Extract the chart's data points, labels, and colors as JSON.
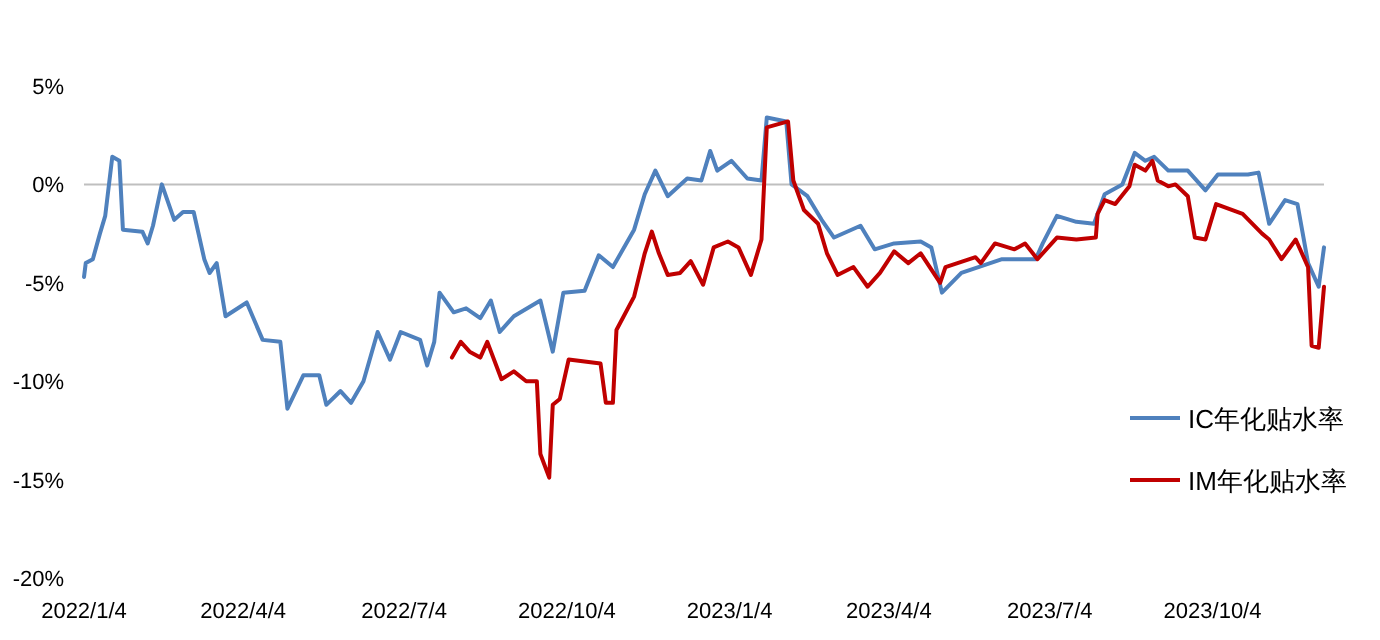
{
  "chart_data": {
    "type": "line",
    "series": [
      {
        "name": "IC年化贴水率",
        "color": "#4f81bd",
        "x": [
          "2022-01-04",
          "2022-01-05",
          "2022-01-09",
          "2022-01-13",
          "2022-01-16",
          "2022-01-20",
          "2022-01-24",
          "2022-01-26",
          "2022-02-06",
          "2022-02-09",
          "2022-02-12",
          "2022-02-17",
          "2022-02-24",
          "2022-03-01",
          "2022-03-07",
          "2022-03-13",
          "2022-03-16",
          "2022-03-20",
          "2022-03-25",
          "2022-04-06",
          "2022-04-15",
          "2022-04-25",
          "2022-04-29",
          "2022-05-08",
          "2022-05-17",
          "2022-05-21",
          "2022-05-29",
          "2022-06-04",
          "2022-06-11",
          "2022-06-19",
          "2022-06-26",
          "2022-07-02",
          "2022-07-13",
          "2022-07-17",
          "2022-07-21",
          "2022-07-24",
          "2022-08-01",
          "2022-08-08",
          "2022-08-16",
          "2022-08-22",
          "2022-08-27",
          "2022-09-04",
          "2022-09-19",
          "2022-09-26",
          "2022-10-02",
          "2022-10-14",
          "2022-10-22",
          "2022-10-30",
          "2022-11-11",
          "2022-11-17",
          "2022-11-23",
          "2022-11-30",
          "2022-12-11",
          "2022-12-19",
          "2022-12-24",
          "2022-12-28",
          "2023-01-05",
          "2023-01-14",
          "2023-01-22",
          "2023-01-25",
          "2023-02-05",
          "2023-02-08",
          "2023-02-17",
          "2023-02-25",
          "2023-03-04",
          "2023-03-19",
          "2023-03-27",
          "2023-04-07",
          "2023-04-22",
          "2023-04-28",
          "2023-05-04",
          "2023-05-15",
          "2023-06-07",
          "2023-06-26",
          "2023-06-30",
          "2023-07-08",
          "2023-07-19",
          "2023-07-29",
          "2023-08-04",
          "2023-08-14",
          "2023-08-21",
          "2023-08-27",
          "2023-09-01",
          "2023-09-09",
          "2023-09-20",
          "2023-09-30",
          "2023-10-07",
          "2023-10-24",
          "2023-10-30",
          "2023-11-05",
          "2023-11-14",
          "2023-11-21",
          "2023-11-27",
          "2023-12-03",
          "2023-12-06"
        ],
        "values": [
          -4.7,
          -4.0,
          -3.8,
          -2.5,
          -1.6,
          1.4,
          1.2,
          -2.3,
          -2.4,
          -3.0,
          -2.1,
          0.0,
          -1.8,
          -1.4,
          -1.4,
          -3.8,
          -4.5,
          -4.0,
          -6.7,
          -6.0,
          -7.9,
          -8.0,
          -11.4,
          -9.7,
          -9.7,
          -11.2,
          -10.5,
          -11.1,
          -10.0,
          -7.5,
          -8.9,
          -7.5,
          -7.9,
          -9.2,
          -8.0,
          -5.5,
          -6.5,
          -6.3,
          -6.8,
          -5.9,
          -7.5,
          -6.7,
          -5.9,
          -8.5,
          -5.5,
          -5.4,
          -3.6,
          -4.2,
          -2.3,
          -0.5,
          0.7,
          -0.6,
          0.3,
          0.2,
          1.7,
          0.7,
          1.2,
          0.3,
          0.2,
          3.4,
          3.2,
          0.0,
          -0.6,
          -1.8,
          -2.7,
          -2.1,
          -3.3,
          -3.0,
          -2.9,
          -3.2,
          -5.5,
          -4.5,
          -3.8,
          -3.8,
          -3.0,
          -1.6,
          -1.9,
          -2.0,
          -0.5,
          0.0,
          1.6,
          1.2,
          1.4,
          0.7,
          0.7,
          -0.3,
          0.5,
          0.5,
          0.6,
          -2.0,
          -0.8,
          -1.0,
          -4.0,
          -5.2,
          -3.2
        ]
      },
      {
        "name": "IM年化贴水率",
        "color": "#c00000",
        "x": [
          "2022-07-31",
          "2022-08-05",
          "2022-08-10",
          "2022-08-16",
          "2022-08-20",
          "2022-08-28",
          "2022-09-04",
          "2022-09-11",
          "2022-09-17",
          "2022-09-19",
          "2022-09-24",
          "2022-09-26",
          "2022-09-30",
          "2022-10-05",
          "2022-10-23",
          "2022-10-26",
          "2022-10-30",
          "2022-11-01",
          "2022-11-11",
          "2022-11-17",
          "2022-11-21",
          "2022-11-25",
          "2022-11-30",
          "2022-12-07",
          "2022-12-13",
          "2022-12-20",
          "2022-12-26",
          "2023-01-03",
          "2023-01-09",
          "2023-01-16",
          "2023-01-22",
          "2023-01-25",
          "2023-02-06",
          "2023-02-09",
          "2023-02-15",
          "2023-02-23",
          "2023-02-28",
          "2023-03-06",
          "2023-03-15",
          "2023-03-23",
          "2023-03-30",
          "2023-04-07",
          "2023-04-15",
          "2023-04-22",
          "2023-05-03",
          "2023-05-06",
          "2023-05-23",
          "2023-05-26",
          "2023-06-03",
          "2023-06-14",
          "2023-06-20",
          "2023-06-27",
          "2023-07-08",
          "2023-07-19",
          "2023-07-30",
          "2023-07-31",
          "2023-08-04",
          "2023-08-10",
          "2023-08-18",
          "2023-08-21",
          "2023-08-27",
          "2023-08-31",
          "2023-09-03",
          "2023-09-09",
          "2023-09-13",
          "2023-09-20",
          "2023-09-24",
          "2023-09-30",
          "2023-10-06",
          "2023-10-21",
          "2023-11-01",
          "2023-11-05",
          "2023-11-12",
          "2023-11-20",
          "2023-11-27",
          "2023-11-29",
          "2023-12-03",
          "2023-12-06"
        ],
        "values": [
          -8.8,
          -8.0,
          -8.5,
          -8.8,
          -8.0,
          -9.9,
          -9.5,
          -10.0,
          -10.0,
          -13.7,
          -14.9,
          -11.2,
          -10.9,
          -8.9,
          -9.1,
          -11.1,
          -11.1,
          -7.4,
          -5.7,
          -3.5,
          -2.4,
          -3.5,
          -4.6,
          -4.5,
          -3.9,
          -5.1,
          -3.2,
          -2.9,
          -3.2,
          -4.6,
          -2.8,
          2.9,
          3.2,
          0.2,
          -1.3,
          -2.0,
          -3.5,
          -4.6,
          -4.2,
          -5.2,
          -4.5,
          -3.4,
          -4.0,
          -3.5,
          -5.0,
          -4.2,
          -3.7,
          -4.0,
          -3.0,
          -3.3,
          -3.0,
          -3.8,
          -2.7,
          -2.8,
          -2.7,
          -1.5,
          -0.8,
          -1.0,
          -0.1,
          1.0,
          0.7,
          1.2,
          0.2,
          -0.1,
          0.0,
          -0.6,
          -2.7,
          -2.8,
          -1.0,
          -1.5,
          -2.5,
          -2.8,
          -3.8,
          -2.8,
          -4.2,
          -8.2,
          -8.3,
          -5.2
        ]
      }
    ],
    "xlim": [
      "2022-01-04",
      "2023-12-06"
    ],
    "xticks": [
      {
        "value": "2022-01-04",
        "label": "2022/1/4"
      },
      {
        "value": "2022-04-04",
        "label": "2022/4/4"
      },
      {
        "value": "2022-07-04",
        "label": "2022/7/4"
      },
      {
        "value": "2022-10-04",
        "label": "2022/10/4"
      },
      {
        "value": "2023-01-04",
        "label": "2023/1/4"
      },
      {
        "value": "2023-04-04",
        "label": "2023/4/4"
      },
      {
        "value": "2023-07-04",
        "label": "2023/7/4"
      },
      {
        "value": "2023-10-04",
        "label": "2023/10/4"
      }
    ],
    "ylim": [
      -20,
      5
    ],
    "yticks": [
      {
        "value": -20,
        "label": "-20%"
      },
      {
        "value": -15,
        "label": "-15%"
      },
      {
        "value": -10,
        "label": "-10%"
      },
      {
        "value": -5,
        "label": "-5%"
      },
      {
        "value": 0,
        "label": "0%"
      },
      {
        "value": 5,
        "label": "5%"
      }
    ],
    "ref_lines": [
      {
        "axis": "y",
        "value": 0,
        "color": "#bfbfbf"
      }
    ],
    "grid": false,
    "legend": "right",
    "marker": "none",
    "line_style": "solid"
  }
}
